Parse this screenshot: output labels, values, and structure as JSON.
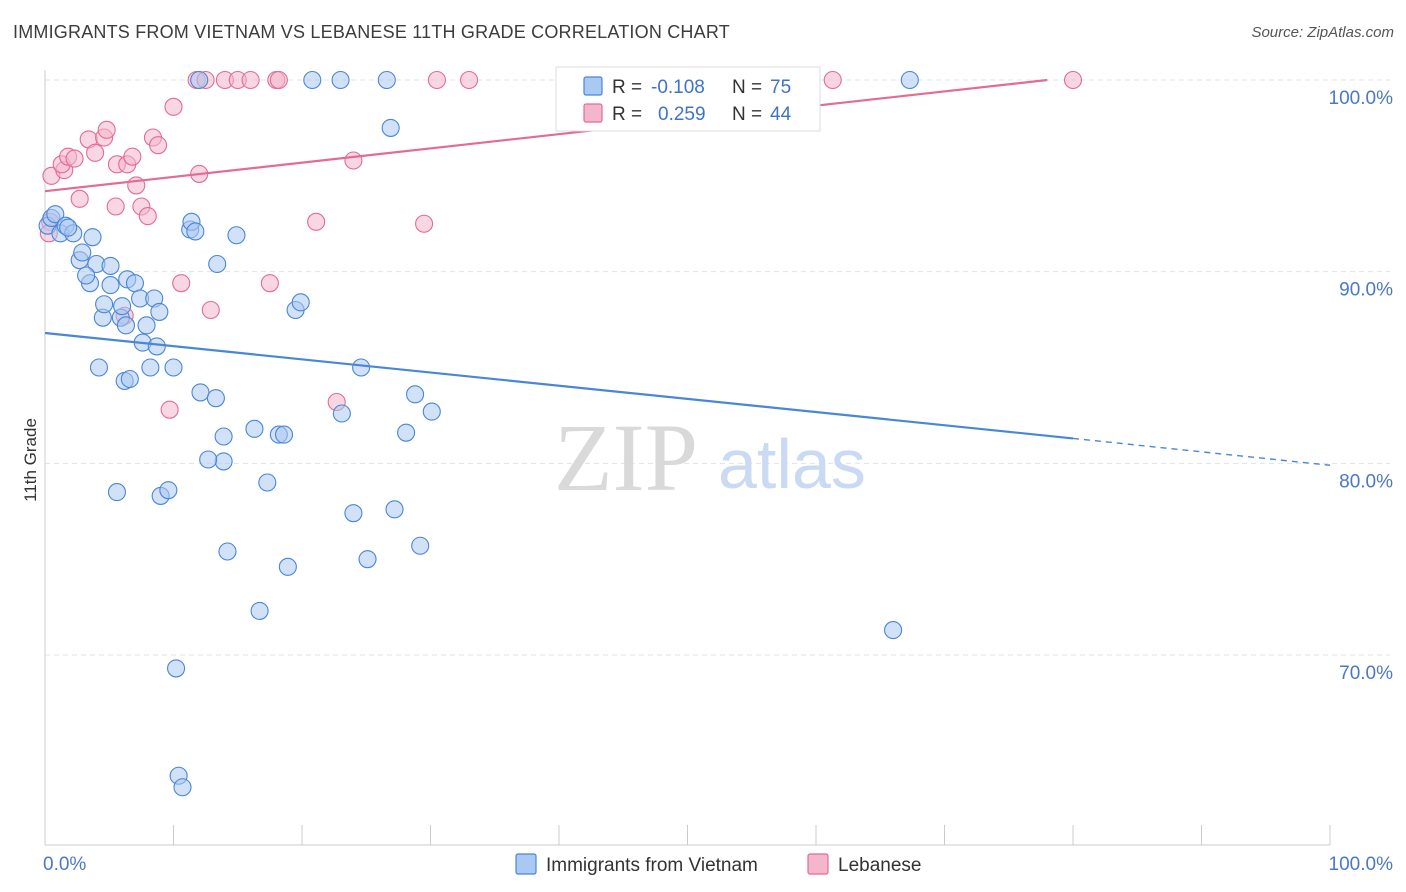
{
  "title": "IMMIGRANTS FROM VIETNAM VS LEBANESE 11TH GRADE CORRELATION CHART",
  "source": "Source: ZipAtlas.com",
  "watermark": {
    "zip": "ZIP",
    "atlas": "atlas"
  },
  "colors": {
    "blue": "#4a86d8",
    "blue_fill": "#a9c8f2",
    "pink": "#e46b93",
    "pink_fill": "#f4b6ca",
    "tick_text": "#4a78c8",
    "grid": "#e3e3e3"
  },
  "stats_legend": [
    {
      "r_label": "R =",
      "r_value": "-0.108",
      "n_label": "N =",
      "n_value": "75"
    },
    {
      "r_label": "R =",
      "r_value": "0.259",
      "n_label": "N =",
      "n_value": "44"
    }
  ],
  "chart_data": {
    "type": "scatter",
    "title": "IMMIGRANTS FROM VIETNAM VS LEBANESE 11TH GRADE CORRELATION CHART",
    "xlabel": "",
    "ylabel": "11th Grade",
    "xlim": [
      0,
      100
    ],
    "ylim": [
      61,
      101
    ],
    "x_tick_labels": [
      "0.0%",
      "100.0%"
    ],
    "y_ticks": [
      70,
      80,
      90,
      100
    ],
    "y_tick_labels": [
      "70.0%",
      "80.0%",
      "90.0%",
      "100.0%"
    ],
    "grid": true,
    "legend_position": "bottom-center",
    "series": [
      {
        "name": "Immigrants from Vietnam",
        "color": "#4a86d8",
        "trend": {
          "x0": 0,
          "y0": 86.8,
          "x1": 80,
          "y1": 81.3,
          "dashed_to_x": 100,
          "dashed_y": 79.9
        },
        "points": [
          [
            0.2,
            92.4
          ],
          [
            0.5,
            92.8
          ],
          [
            0.8,
            93.0
          ],
          [
            1.2,
            92.0
          ],
          [
            1.6,
            92.4
          ],
          [
            2.2,
            92.0
          ],
          [
            2.7,
            90.6
          ],
          [
            2.9,
            91.0
          ],
          [
            3.5,
            89.4
          ],
          [
            3.7,
            91.8
          ],
          [
            4.0,
            90.4
          ],
          [
            3.2,
            89.8
          ],
          [
            4.5,
            87.6
          ],
          [
            4.6,
            88.3
          ],
          [
            5.1,
            89.3
          ],
          [
            5.1,
            90.3
          ],
          [
            5.9,
            87.6
          ],
          [
            6.3,
            87.2
          ],
          [
            6.4,
            89.6
          ],
          [
            7.0,
            89.4
          ],
          [
            7.4,
            88.6
          ],
          [
            7.6,
            86.3
          ],
          [
            7.9,
            87.2
          ],
          [
            8.5,
            88.6
          ],
          [
            8.7,
            86.1
          ],
          [
            8.9,
            87.9
          ],
          [
            4.2,
            85.0
          ],
          [
            6.2,
            84.3
          ],
          [
            6.6,
            84.4
          ],
          [
            8.2,
            85.0
          ],
          [
            10.0,
            85.0
          ],
          [
            11.3,
            92.2
          ],
          [
            11.4,
            92.6
          ],
          [
            11.7,
            92.1
          ],
          [
            12.0,
            100.0
          ],
          [
            13.4,
            90.4
          ],
          [
            14.9,
            91.9
          ],
          [
            12.1,
            83.7
          ],
          [
            13.3,
            83.4
          ],
          [
            13.9,
            81.4
          ],
          [
            13.9,
            80.1
          ],
          [
            12.7,
            80.2
          ],
          [
            5.6,
            78.5
          ],
          [
            9.0,
            78.3
          ],
          [
            9.6,
            78.6
          ],
          [
            16.3,
            81.8
          ],
          [
            18.2,
            81.5
          ],
          [
            18.6,
            81.5
          ],
          [
            17.3,
            79.0
          ],
          [
            19.5,
            88.0
          ],
          [
            19.9,
            88.4
          ],
          [
            20.8,
            100.0
          ],
          [
            23.0,
            100.0
          ],
          [
            24.6,
            85.0
          ],
          [
            23.1,
            82.6
          ],
          [
            26.6,
            100.0
          ],
          [
            26.9,
            97.5
          ],
          [
            28.8,
            83.6
          ],
          [
            28.1,
            81.6
          ],
          [
            30.1,
            82.7
          ],
          [
            24.0,
            77.4
          ],
          [
            27.2,
            77.6
          ],
          [
            25.1,
            75.0
          ],
          [
            29.2,
            75.7
          ],
          [
            14.2,
            75.4
          ],
          [
            18.9,
            74.6
          ],
          [
            16.7,
            72.3
          ],
          [
            10.2,
            69.3
          ],
          [
            10.4,
            63.7
          ],
          [
            10.7,
            63.1
          ],
          [
            52.1,
            100.0
          ],
          [
            67.3,
            100.0
          ],
          [
            66.0,
            71.3
          ],
          [
            1.8,
            92.3
          ],
          [
            6.0,
            88.2
          ]
        ]
      },
      {
        "name": "Lebanese",
        "color": "#e46b93",
        "trend": {
          "x0": 0,
          "y0": 94.2,
          "x1": 78,
          "y1": 100.0
        },
        "points": [
          [
            0.5,
            95.0
          ],
          [
            1.5,
            95.3
          ],
          [
            1.3,
            95.6
          ],
          [
            0.4,
            92.6
          ],
          [
            0.3,
            92.0
          ],
          [
            1.8,
            96.0
          ],
          [
            2.3,
            95.9
          ],
          [
            2.7,
            93.8
          ],
          [
            3.4,
            96.9
          ],
          [
            3.9,
            96.2
          ],
          [
            4.6,
            97.0
          ],
          [
            4.8,
            97.4
          ],
          [
            5.5,
            93.4
          ],
          [
            5.6,
            95.6
          ],
          [
            6.4,
            95.6
          ],
          [
            6.8,
            96.0
          ],
          [
            7.1,
            94.5
          ],
          [
            7.5,
            93.4
          ],
          [
            8.0,
            92.9
          ],
          [
            8.4,
            97.0
          ],
          [
            8.8,
            96.6
          ],
          [
            10.0,
            98.6
          ],
          [
            11.8,
            100.0
          ],
          [
            12.0,
            95.1
          ],
          [
            12.5,
            100.0
          ],
          [
            14.0,
            100.0
          ],
          [
            15.0,
            100.0
          ],
          [
            16.0,
            100.0
          ],
          [
            18.0,
            100.0
          ],
          [
            18.2,
            100.0
          ],
          [
            21.1,
            92.6
          ],
          [
            24.0,
            95.8
          ],
          [
            22.7,
            83.2
          ],
          [
            29.5,
            92.5
          ],
          [
            30.5,
            100.0
          ],
          [
            33.0,
            100.0
          ],
          [
            43.2,
            100.0
          ],
          [
            61.3,
            100.0
          ],
          [
            80.0,
            100.0
          ],
          [
            10.6,
            89.4
          ],
          [
            12.9,
            88.0
          ],
          [
            17.5,
            89.4
          ],
          [
            9.7,
            82.8
          ],
          [
            6.2,
            87.7
          ]
        ]
      }
    ]
  }
}
